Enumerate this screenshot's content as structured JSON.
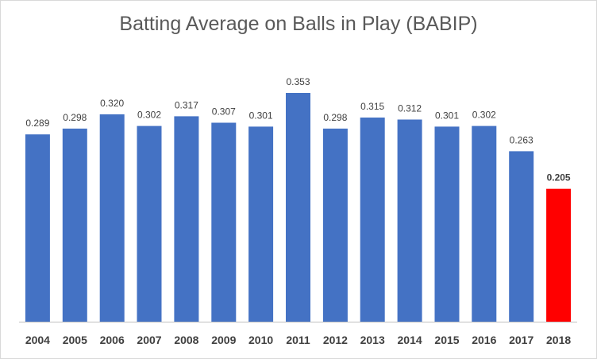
{
  "chart_data": {
    "type": "bar",
    "title": "Batting Average on Balls in Play (BABIP)",
    "xlabel": "",
    "ylabel": "",
    "categories": [
      "2004",
      "2005",
      "2006",
      "2007",
      "2008",
      "2009",
      "2010",
      "2011",
      "2012",
      "2013",
      "2014",
      "2015",
      "2016",
      "2017",
      "2018"
    ],
    "values": [
      0.289,
      0.298,
      0.32,
      0.302,
      0.317,
      0.307,
      0.301,
      0.353,
      0.298,
      0.315,
      0.312,
      0.301,
      0.302,
      0.263,
      0.205
    ],
    "data_labels": [
      "0.289",
      "0.298",
      "0.320",
      "0.302",
      "0.317",
      "0.307",
      "0.301",
      "0.353",
      "0.298",
      "0.315",
      "0.312",
      "0.301",
      "0.302",
      "0.263",
      "0.205"
    ],
    "ylim": [
      0,
      0.4
    ],
    "grid": false,
    "legend": "none",
    "colors": {
      "default": "#4472c4",
      "highlight": "#ff0000",
      "axis": "#bfbfbf"
    },
    "highlight_index": 14
  }
}
